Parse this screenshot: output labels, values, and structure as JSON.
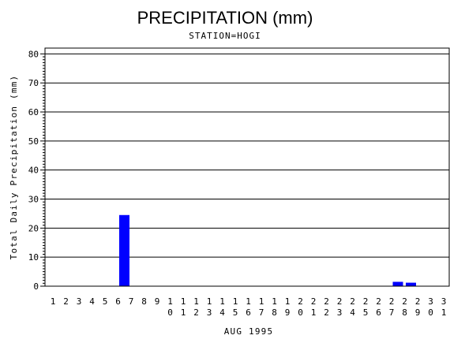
{
  "chart_data": {
    "type": "bar",
    "title": "PRECIPITATION (mm)",
    "subtitle": "STATION=HOGI",
    "xlabel": "AUG 1995",
    "ylabel": "Total Daily Precipitation (mm)",
    "ylim": [
      0,
      82
    ],
    "yticks": [
      0,
      10,
      20,
      30,
      40,
      50,
      60,
      70,
      80
    ],
    "grid": true,
    "categories": [
      "1",
      "2",
      "3",
      "4",
      "5",
      "6",
      "7",
      "8",
      "9",
      "10",
      "11",
      "12",
      "13",
      "14",
      "15",
      "16",
      "17",
      "18",
      "19",
      "20",
      "21",
      "22",
      "23",
      "24",
      "25",
      "26",
      "27",
      "28",
      "29",
      "30",
      "31"
    ],
    "values": [
      0,
      0,
      0,
      0,
      0,
      24.5,
      0,
      0,
      0,
      0,
      0,
      0,
      0,
      0,
      0,
      0,
      0,
      0,
      0,
      0,
      0,
      0,
      0,
      0,
      0,
      0,
      1.5,
      1.2,
      0,
      0,
      0
    ],
    "bar_color": "#0000ff"
  }
}
